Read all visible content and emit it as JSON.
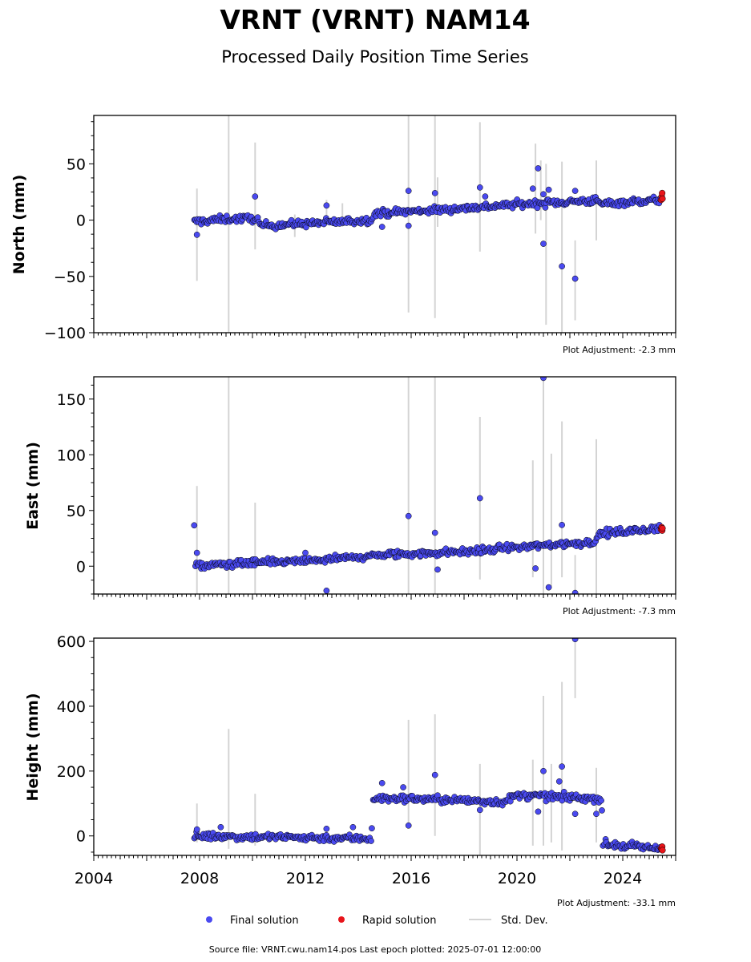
{
  "header": {
    "title": "VRNT (VRNT) NAM14",
    "subtitle": "Processed Daily Position Time Series"
  },
  "footer": {
    "source": "Source file: VRNT.cwu.nam14.pos  Last epoch plotted: 2025-07-01 12:00:00"
  },
  "legend": {
    "final": "Final solution",
    "rapid": "Rapid solution",
    "std": "Std. Dev."
  },
  "colors": {
    "final": "#4a4af0",
    "rapid": "#e8141a",
    "std": "#d4d4d4",
    "edge": "#000000"
  },
  "chart_data": [
    {
      "type": "scatter",
      "ylabel": "North (mm)",
      "adjustment": "Plot Adjustment: -2.3 mm",
      "ylim": [
        -100,
        93
      ],
      "yticks": [
        -100,
        -50,
        0,
        50
      ],
      "ytick_labels": [
        "−100",
        "−50",
        "0",
        "50"
      ],
      "xlim": [
        2004.0,
        2026.0
      ],
      "x_range": [
        2007.8,
        2025.5
      ],
      "trend": [
        [
          2007.8,
          -1.5
        ],
        [
          2009.0,
          1.0
        ],
        [
          2010.2,
          1.5
        ],
        [
          2010.25,
          -5.0
        ],
        [
          2012.0,
          -3.0
        ],
        [
          2014.5,
          0.0
        ],
        [
          2014.55,
          6.0
        ],
        [
          2017.0,
          9.0
        ],
        [
          2020.0,
          14.0
        ],
        [
          2023.0,
          17.5
        ],
        [
          2023.1,
          14.5
        ],
        [
          2025.5,
          18.0
        ]
      ],
      "outliers": [
        [
          2007.9,
          -13
        ],
        [
          2010.1,
          21
        ],
        [
          2012.8,
          13
        ],
        [
          2015.9,
          26
        ],
        [
          2015.9,
          -5
        ],
        [
          2016.9,
          24
        ],
        [
          2018.6,
          29
        ],
        [
          2018.8,
          21
        ],
        [
          2020.6,
          28
        ],
        [
          2020.8,
          46
        ],
        [
          2021.0,
          23
        ],
        [
          2021.0,
          -21
        ],
        [
          2021.2,
          27
        ],
        [
          2021.7,
          -41
        ],
        [
          2022.2,
          26
        ],
        [
          2022.2,
          -52
        ],
        [
          2014.9,
          -6
        ]
      ],
      "stddev": [
        [
          2007.9,
          -54,
          28
        ],
        [
          2009.1,
          -100,
          93
        ],
        [
          2010.1,
          -26,
          69
        ],
        [
          2011.6,
          -15,
          5
        ],
        [
          2012.8,
          -5,
          18
        ],
        [
          2013.4,
          -6,
          15
        ],
        [
          2015.9,
          -82,
          93
        ],
        [
          2016.9,
          -87,
          93
        ],
        [
          2017.0,
          -6,
          38
        ],
        [
          2018.6,
          -28,
          87
        ],
        [
          2020.7,
          -12,
          68
        ],
        [
          2020.9,
          0,
          53
        ],
        [
          2021.1,
          -93,
          50
        ],
        [
          2021.7,
          -100,
          52
        ],
        [
          2022.2,
          -89,
          -18
        ],
        [
          2023.0,
          -18,
          53
        ]
      ],
      "rapid": [
        [
          2025.45,
          18
        ],
        [
          2025.47,
          21
        ],
        [
          2025.49,
          24
        ],
        [
          2025.5,
          19
        ]
      ]
    },
    {
      "type": "scatter",
      "ylabel": "East (mm)",
      "adjustment": "Plot Adjustment: -7.3 mm",
      "ylim": [
        -25,
        170
      ],
      "yticks": [
        0,
        50,
        100,
        150
      ],
      "ytick_labels": [
        "0",
        "50",
        "100",
        "150"
      ],
      "xlim": [
        2004.0,
        2026.0
      ],
      "x_range": [
        2007.8,
        2025.5
      ],
      "trend": [
        [
          2007.8,
          0.0
        ],
        [
          2009.0,
          2.0
        ],
        [
          2012.0,
          4.5
        ],
        [
          2015.0,
          10.0
        ],
        [
          2018.0,
          13.0
        ],
        [
          2020.0,
          17.0
        ],
        [
          2023.0,
          22.0
        ],
        [
          2023.1,
          29.0
        ],
        [
          2025.5,
          34.0
        ]
      ],
      "outliers": [
        [
          2007.9,
          12
        ],
        [
          2012.0,
          12
        ],
        [
          2012.8,
          -22
        ],
        [
          2015.9,
          45
        ],
        [
          2016.9,
          30
        ],
        [
          2017.0,
          -3
        ],
        [
          2018.6,
          61
        ],
        [
          2020.7,
          -2
        ],
        [
          2021.0,
          169
        ],
        [
          2021.2,
          -19
        ],
        [
          2021.7,
          37
        ],
        [
          2022.2,
          -24
        ]
      ],
      "stddev": [
        [
          2007.9,
          -25,
          72
        ],
        [
          2009.1,
          -25,
          170
        ],
        [
          2010.1,
          -25,
          57
        ],
        [
          2015.9,
          -25,
          170
        ],
        [
          2016.9,
          -25,
          170
        ],
        [
          2018.6,
          -12,
          134
        ],
        [
          2020.6,
          -10,
          95
        ],
        [
          2021.0,
          -25,
          170
        ],
        [
          2021.3,
          -18,
          101
        ],
        [
          2021.7,
          -10,
          130
        ],
        [
          2022.2,
          -25,
          10
        ],
        [
          2023.0,
          -25,
          114
        ]
      ],
      "rapid": [
        [
          2025.45,
          33
        ],
        [
          2025.47,
          35
        ],
        [
          2025.49,
          32
        ],
        [
          2025.5,
          34
        ]
      ]
    },
    {
      "type": "scatter",
      "ylabel": "Height (mm)",
      "adjustment": "Plot Adjustment: -33.1 mm",
      "ylim": [
        -60,
        610
      ],
      "yticks": [
        0,
        200,
        400,
        600
      ],
      "ytick_labels": [
        "0",
        "200",
        "400",
        "600"
      ],
      "xlim": [
        2004.0,
        2026.0
      ],
      "x_range": [
        2007.8,
        2025.5
      ],
      "trend": [
        [
          2007.8,
          0.0
        ],
        [
          2014.5,
          -8.0
        ],
        [
          2014.55,
          115.0
        ],
        [
          2016.0,
          115.0
        ],
        [
          2019.5,
          105.0
        ],
        [
          2020.0,
          125.0
        ],
        [
          2023.2,
          115.0
        ],
        [
          2023.25,
          -25.0
        ],
        [
          2025.5,
          -40.0
        ]
      ],
      "outliers": [
        [
          2007.9,
          20
        ],
        [
          2008.8,
          27
        ],
        [
          2012.8,
          22
        ],
        [
          2013.8,
          27
        ],
        [
          2014.9,
          163
        ],
        [
          2015.7,
          150
        ],
        [
          2015.9,
          32
        ],
        [
          2016.9,
          188
        ],
        [
          2018.6,
          80
        ],
        [
          2020.8,
          75
        ],
        [
          2021.0,
          200
        ],
        [
          2021.6,
          168
        ],
        [
          2021.7,
          214
        ],
        [
          2022.2,
          68
        ],
        [
          2022.2,
          607
        ],
        [
          2023.0,
          68
        ]
      ],
      "stddev": [
        [
          2007.9,
          -20,
          100
        ],
        [
          2009.1,
          -40,
          330
        ],
        [
          2010.1,
          -30,
          130
        ],
        [
          2015.9,
          30,
          358
        ],
        [
          2016.9,
          0,
          375
        ],
        [
          2018.6,
          -60,
          222
        ],
        [
          2020.6,
          -30,
          235
        ],
        [
          2021.0,
          -30,
          432
        ],
        [
          2021.3,
          -20,
          222
        ],
        [
          2021.7,
          -45,
          475
        ],
        [
          2022.2,
          425,
          610
        ],
        [
          2023.0,
          -20,
          210
        ]
      ],
      "rapid": [
        [
          2025.45,
          -38
        ],
        [
          2025.47,
          -42
        ],
        [
          2025.49,
          -33
        ],
        [
          2025.5,
          -44
        ]
      ]
    }
  ],
  "xaxis": {
    "ticks": [
      2004,
      2008,
      2012,
      2016,
      2020,
      2024
    ],
    "tick_labels": [
      "2004",
      "2008",
      "2012",
      "2016",
      "2020",
      "2024"
    ]
  }
}
